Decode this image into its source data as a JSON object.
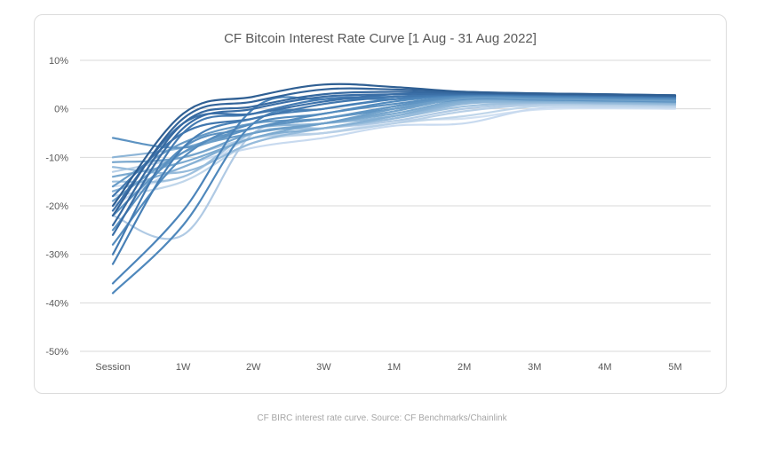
{
  "caption": "CF BIRC interest rate curve. Source: CF Benchmarks/Chainlink",
  "colors": {
    "dark": "#2f5f93",
    "mid": "#4f86c0",
    "light": "#c8daef",
    "grid": "#d9d9d9",
    "text": "#595959"
  },
  "chart_data": {
    "type": "line",
    "title": "CF Bitcoin Interest Rate Curve [1 Aug - 31 Aug 2022]",
    "xlabel": "",
    "ylabel": "",
    "categories": [
      "Session",
      "1W",
      "2W",
      "3W",
      "1M",
      "2M",
      "3M",
      "4M",
      "5M"
    ],
    "ylim": [
      -50,
      10
    ],
    "yticks": [
      10,
      0,
      -10,
      -20,
      -30,
      -40,
      -50
    ],
    "ytick_labels": [
      "10%",
      "0%",
      "-10%",
      "-20%",
      "-30%",
      "-40%",
      "-50%"
    ],
    "grid": true,
    "legend": "none",
    "series": [
      {
        "values": [
          -20,
          -1,
          2.5,
          5,
          4.5,
          3.5,
          3.2,
          3,
          2.8
        ],
        "color": "#2f5f93"
      },
      {
        "values": [
          -22,
          -2,
          1.5,
          4,
          4,
          3.5,
          3.2,
          3,
          2.8
        ],
        "color": "#33649a"
      },
      {
        "values": [
          -24,
          -3,
          0.5,
          3,
          3.5,
          3.3,
          3.1,
          2.9,
          2.7
        ],
        "color": "#3669a0"
      },
      {
        "values": [
          -26,
          -4,
          0,
          2.5,
          3,
          3.2,
          3,
          2.8,
          2.6
        ],
        "color": "#3a6ea6"
      },
      {
        "values": [
          -21,
          -3,
          -1,
          1.5,
          3,
          3.1,
          3,
          2.8,
          2.6
        ],
        "color": "#3d72aa"
      },
      {
        "values": [
          -18,
          -5,
          -2,
          1,
          2.5,
          3,
          2.9,
          2.7,
          2.5
        ],
        "color": "#4177ae"
      },
      {
        "values": [
          -30,
          -5,
          -1,
          2,
          2.5,
          3,
          2.9,
          2.7,
          2.5
        ],
        "color": "#447bb2"
      },
      {
        "values": [
          -32,
          -8,
          -2,
          0,
          2,
          3,
          2.8,
          2.6,
          2.4
        ],
        "color": "#4880b6"
      },
      {
        "values": [
          -36,
          -21,
          0,
          2,
          2,
          2.9,
          2.8,
          2.6,
          2.4
        ],
        "color": "#4b84ba"
      },
      {
        "values": [
          -38,
          -24,
          -3,
          0,
          2,
          2.8,
          2.7,
          2.5,
          2.3
        ],
        "color": "#4f88bc"
      },
      {
        "values": [
          -28,
          -10,
          -3,
          -1,
          1.5,
          2.8,
          2.6,
          2.4,
          2.2
        ],
        "color": "#548cbe"
      },
      {
        "values": [
          -25,
          -8,
          -4,
          -1,
          1,
          2.6,
          2.5,
          2.3,
          2.1
        ],
        "color": "#5a90c0"
      },
      {
        "values": [
          -22,
          -9,
          -4,
          -2,
          0.5,
          2.5,
          2.4,
          2.2,
          2.0
        ],
        "color": "#6095c3"
      },
      {
        "values": [
          -16,
          -7,
          -3,
          -2,
          0.5,
          2.5,
          2.4,
          2.2,
          2.0
        ],
        "color": "#669ac6"
      },
      {
        "values": [
          -19,
          -9,
          -5,
          -3,
          0,
          2.3,
          2.2,
          2.0,
          1.8
        ],
        "color": "#6d9fc9"
      },
      {
        "values": [
          -11,
          -10,
          -5,
          -3,
          -0.5,
          2.2,
          2.1,
          1.9,
          1.7
        ],
        "color": "#74a4cc"
      },
      {
        "values": [
          -6,
          -8,
          -4,
          -2,
          0,
          2,
          1.9,
          1.7,
          1.5
        ],
        "color": "#5d93c2"
      },
      {
        "values": [
          -14,
          -11,
          -6,
          -3,
          -1,
          1.8,
          1.8,
          1.6,
          1.4
        ],
        "color": "#7caad0"
      },
      {
        "values": [
          -17,
          -12,
          -6,
          -4,
          -1.5,
          1.5,
          1.6,
          1.5,
          1.3
        ],
        "color": "#85b0d4"
      },
      {
        "values": [
          -10,
          -8,
          -4,
          -3,
          -1.5,
          1.2,
          1.5,
          1.4,
          1.2
        ],
        "color": "#8db5d7"
      },
      {
        "values": [
          -12,
          -13,
          -7,
          -4,
          -2,
          1,
          1.3,
          1.2,
          1.0
        ],
        "color": "#96bbdb"
      },
      {
        "values": [
          -15,
          -14,
          -5,
          -4,
          -2,
          0.5,
          1.2,
          1.1,
          0.9
        ],
        "color": "#9fc1de"
      },
      {
        "values": [
          -22,
          -26,
          -5,
          -4,
          -2.5,
          0,
          1,
          1,
          0.8
        ],
        "color": "#b0cae4"
      },
      {
        "values": [
          -13,
          -10,
          -6,
          -5,
          -3,
          -0.5,
          0.8,
          0.8,
          0.6
        ],
        "color": "#b8d0e7"
      },
      {
        "values": [
          -18,
          -15,
          -7,
          -5,
          -3,
          -1.5,
          0.5,
          0.6,
          0.4
        ],
        "color": "#c0d6ea"
      },
      {
        "values": [
          -20,
          -12,
          -8,
          -6,
          -3.5,
          -3,
          0,
          0.3,
          0.2
        ],
        "color": "#c8daef"
      },
      {
        "values": [
          -16,
          -14,
          -6,
          -5,
          -2.5,
          -2,
          -0.2,
          0.1,
          0.0
        ],
        "color": "#d2e1f2"
      }
    ]
  }
}
